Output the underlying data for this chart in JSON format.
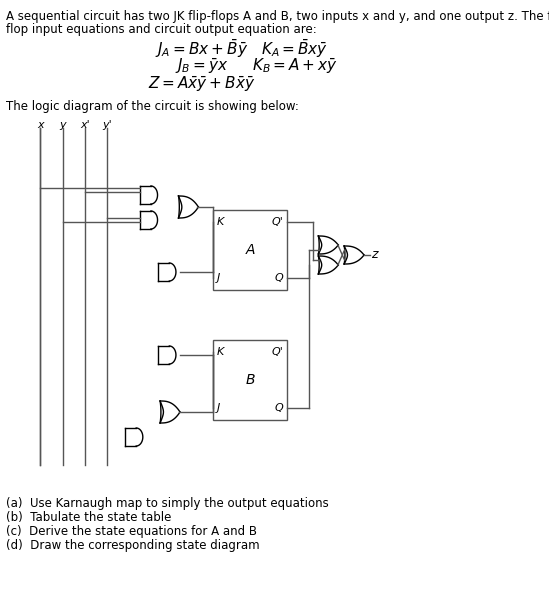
{
  "title_text": "A sequential circuit has two JK flip-flops A and B, two inputs x and y, and one output z. The flip-\nflop input equations and circuit output equation are:",
  "eq1": "$J_A = Bx + \\bar{B}\\bar{y}$",
  "eq2": "$K_A = \\bar{B}x\\bar{y}$",
  "eq3": "$J_B = \\bar{y}x$",
  "eq4": "$K_B = A + x\\bar{y}$",
  "eq5": "$Z = A\\bar{x}\\bar{y} + B\\bar{x}\\bar{y}$",
  "subtitle": "The logic diagram of the circuit is showing below:",
  "questions": [
    "(a)  Use Karnaugh map to simply the output equations",
    "(b)  Tabulate the state table",
    "(c)  Derive the state equations for A and B",
    "(d)  Draw the corresponding state diagram"
  ],
  "bg_color": "#ffffff",
  "text_color": "#000000",
  "line_color": "#555555",
  "fontsize_body": 9.5,
  "fontsize_eq": 11
}
